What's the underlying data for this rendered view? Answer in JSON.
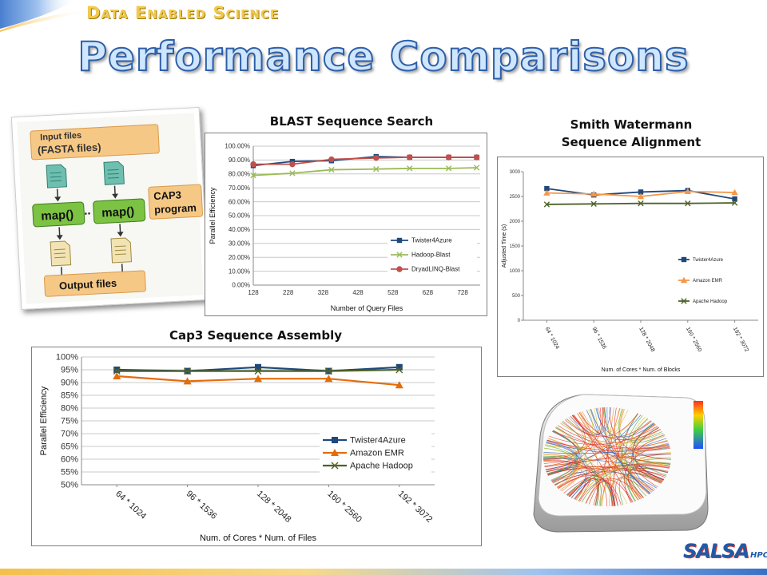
{
  "header": {
    "tagline": "Data Enabled Science",
    "title": "Performance Comparisons"
  },
  "mapreduce_figure": {
    "input_label": "(FASTA files)",
    "input_label_partial": "Input files",
    "map_label": "map()",
    "ellipsis": "..",
    "cap3_label": "CAP3",
    "cap3_label_2": "program",
    "output_label": "Output files"
  },
  "logo": {
    "main": "SALSA",
    "sub": "HPC"
  },
  "chart_data": [
    {
      "type": "line",
      "title": "BLAST Sequence Search",
      "xlabel": "Number of Query Files",
      "ylabel": "Parallel Efficiency",
      "x_ticks": [
        "128",
        "228",
        "328",
        "428",
        "528",
        "628",
        "728"
      ],
      "y_ticks": [
        "0.00%",
        "10.00%",
        "20.00%",
        "30.00%",
        "40.00%",
        "50.00%",
        "60.00%",
        "70.00%",
        "80.00%",
        "90.00%",
        "100.00%"
      ],
      "xlim": [
        128,
        778
      ],
      "ylim": [
        0,
        100
      ],
      "grid": true,
      "legend_position": "right",
      "series": [
        {
          "name": "Twister4Azure",
          "color": "#1f497d",
          "marker": "square",
          "x": [
            128,
            240,
            352,
            480,
            576,
            688,
            768
          ],
          "y": [
            86,
            89,
            89.5,
            92.5,
            92,
            92,
            92
          ]
        },
        {
          "name": "Hadoop-Blast",
          "color": "#9bbb59",
          "marker": "x",
          "x": [
            128,
            240,
            352,
            480,
            576,
            688,
            768
          ],
          "y": [
            79,
            80.5,
            83,
            83.5,
            84,
            84,
            84.5
          ]
        },
        {
          "name": "DryadLINQ-Blast",
          "color": "#c0504d",
          "marker": "circle",
          "x": [
            128,
            240,
            352,
            480,
            576,
            688,
            768
          ],
          "y": [
            87,
            87,
            90.5,
            91.5,
            92,
            92,
            92
          ]
        }
      ]
    },
    {
      "type": "line",
      "title": "Smith Watermann Sequence Alignment",
      "xlabel": "Num. of Cores * Num. of Blocks",
      "ylabel": "Adjusted Time (s)",
      "categories": [
        "64 * 1024",
        "96 * 1536",
        "128 * 2048",
        "160 * 2560",
        "192 * 3072"
      ],
      "y_ticks": [
        "0",
        "500",
        "1000",
        "1500",
        "2000",
        "2500",
        "3000"
      ],
      "ylim": [
        0,
        3000
      ],
      "grid": false,
      "legend_position": "right",
      "series": [
        {
          "name": "Twister4Azure",
          "color": "#1f497d",
          "marker": "square",
          "values": [
            2660,
            2530,
            2590,
            2620,
            2450
          ]
        },
        {
          "name": "Amazon EMR",
          "color": "#f79646",
          "marker": "triangle",
          "values": [
            2570,
            2550,
            2500,
            2600,
            2580
          ]
        },
        {
          "name": "Apache Hadoop",
          "color": "#4f6228",
          "marker": "x",
          "values": [
            2340,
            2350,
            2360,
            2360,
            2370
          ]
        }
      ]
    },
    {
      "type": "line",
      "title": "Cap3 Sequence Assembly",
      "xlabel": "Num. of Cores * Num. of Files",
      "ylabel": "Parallel Efficiency",
      "categories": [
        "64 * 1024",
        "96 * 1536",
        "128 * 2048",
        "160 * 2560",
        "192 * 3072"
      ],
      "y_ticks": [
        "50%",
        "55%",
        "60%",
        "65%",
        "70%",
        "75%",
        "80%",
        "85%",
        "90%",
        "95%",
        "100%"
      ],
      "ylim": [
        50,
        100
      ],
      "grid": true,
      "legend_position": "right",
      "series": [
        {
          "name": "Twister4Azure",
          "color": "#1f497d",
          "marker": "square",
          "values": [
            95,
            94.5,
            96,
            94.5,
            96
          ]
        },
        {
          "name": "Amazon EMR",
          "color": "#e46c0a",
          "marker": "triangle",
          "values": [
            92.5,
            90.5,
            91.5,
            91.5,
            89
          ]
        },
        {
          "name": "Apache Hadoop",
          "color": "#4f6228",
          "marker": "x",
          "values": [
            94.5,
            94.5,
            94.5,
            94.5,
            95
          ]
        }
      ]
    }
  ]
}
